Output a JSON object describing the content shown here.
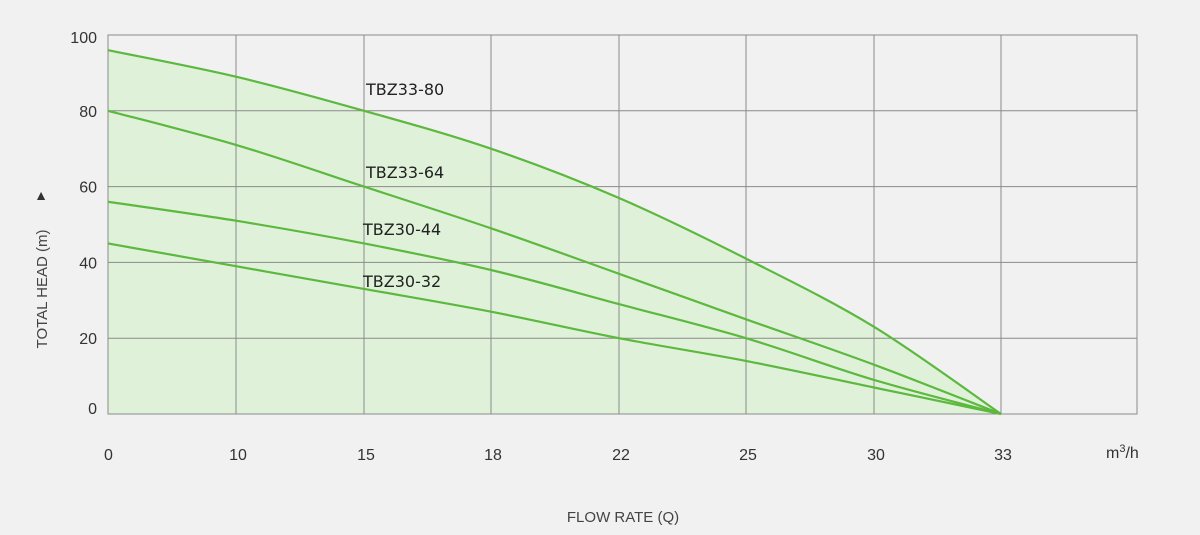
{
  "chart_data": {
    "type": "line",
    "x_ticks": [
      "0",
      "10",
      "15",
      "18",
      "22",
      "25",
      "30",
      "33"
    ],
    "x_unit_base": "m",
    "x_unit_sup": "3",
    "x_unit_tail": "/h",
    "y_ticks": [
      0,
      20,
      40,
      60,
      80,
      100
    ],
    "ylim": [
      0,
      100
    ],
    "xlabel": "FLOW RATE (Q)",
    "ylabel": "TOTAL HEAD (m)",
    "ylabel_arrow": "▲",
    "grid": true,
    "line_color": "#5cb83e",
    "fill_color": "#dff2d9",
    "series": [
      {
        "name": "TBZ33-80",
        "x": [
          "0",
          "10",
          "15",
          "18",
          "22",
          "25",
          "30",
          "33"
        ],
        "y": [
          96,
          89,
          80,
          70,
          57,
          41,
          23,
          0
        ]
      },
      {
        "name": "TBZ33-64",
        "x": [
          "0",
          "10",
          "15",
          "18",
          "22",
          "25",
          "30",
          "33"
        ],
        "y": [
          80,
          71,
          60,
          49,
          37,
          25,
          13,
          0
        ]
      },
      {
        "name": "TBZ30-44",
        "x": [
          "0",
          "10",
          "15",
          "18",
          "22",
          "25",
          "30",
          "33"
        ],
        "y": [
          56,
          51,
          45,
          38,
          29,
          20,
          9,
          0
        ]
      },
      {
        "name": "TBZ30-32",
        "x": [
          "0",
          "10",
          "15",
          "18",
          "22",
          "25",
          "30",
          "33"
        ],
        "y": [
          45,
          39,
          33,
          27,
          20,
          14,
          7,
          0
        ]
      }
    ]
  }
}
